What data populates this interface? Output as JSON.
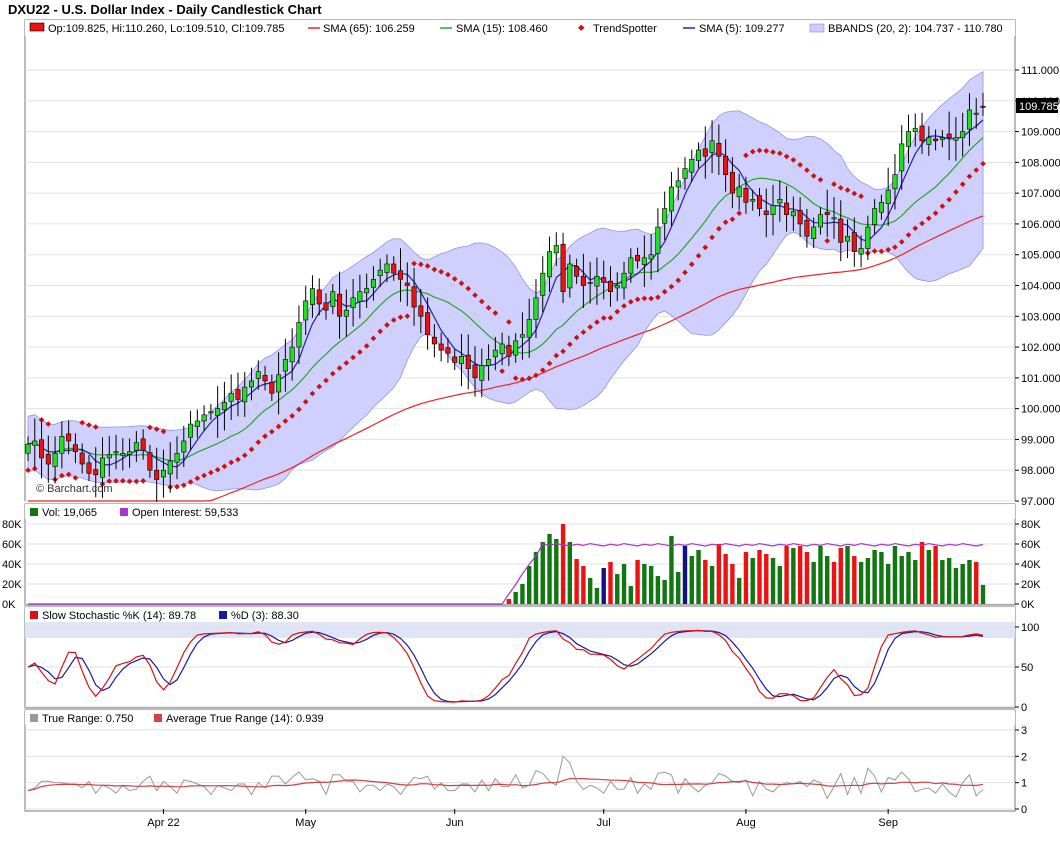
{
  "colors": {
    "up": "#22dd22",
    "down": "#ee1111",
    "sma65": "#ee2222",
    "sma15": "#22aa22",
    "sma5": "#2222aa",
    "bb_fill": "#ccccff",
    "bb_line": "#8888dd",
    "trend": "#cc1111",
    "vol_up": "#117711",
    "vol_down": "#ee1111",
    "vol_flat": "#111188",
    "oi": "#aa33cc",
    "stoch_k": "#dd1111",
    "stoch_d": "#1a1a99",
    "tr": "#999999",
    "atr": "#cc4444"
  },
  "header": {
    "title": "DXU22 - U.S. Dollar Index - Daily Candlestick Chart",
    "watermark": "© Barchart.com"
  },
  "legend_price": {
    "ohlc": "Op:109.825, Hi:110.260, Lo:109.510, Cl:109.785",
    "sma65": "SMA (65): 106.259",
    "sma15": "SMA (15): 108.460",
    "trend": "TrendSpotter",
    "sma5": "SMA (5): 109.277",
    "bbands": "BBANDS (20, 2): 104.737 - 110.780"
  },
  "legend_volume": {
    "vol": "Vol: 19,065",
    "oi": "Open Interest: 59,533"
  },
  "legend_stoch": {
    "k": "Slow Stochastic %K (14): 89.78",
    "d": "%D (3): 88.30"
  },
  "legend_tr": {
    "tr": "True Range: 0.750",
    "atr": "Average True Range (14): 0.939"
  },
  "last_price_label": "109.785",
  "x_labels": [
    "Apr 22",
    "May",
    "Jun",
    "Jul",
    "Aug",
    "Sep"
  ],
  "chart_data": [
    {
      "type": "candlestick",
      "title": "DXU22 - U.S. Dollar Index - Daily Candlestick Chart",
      "y_range": [
        97.0,
        111.0
      ],
      "y_ticks": [
        "111.000",
        "110.000",
        "109.000",
        "108.000",
        "107.000",
        "106.000",
        "105.000",
        "104.000",
        "103.000",
        "102.000",
        "101.000",
        "100.000",
        "99.000",
        "98.000",
        "97.000"
      ],
      "closes": [
        98.85,
        98.95,
        98.4,
        98.2,
        98.55,
        99.1,
        98.95,
        98.6,
        98.2,
        97.9,
        97.85,
        98.4,
        98.5,
        98.6,
        98.55,
        98.6,
        98.9,
        98.65,
        98.0,
        97.7,
        98.0,
        98.3,
        98.55,
        98.95,
        99.5,
        99.6,
        99.8,
        99.9,
        100.0,
        100.2,
        100.5,
        100.3,
        100.7,
        100.9,
        101.2,
        100.9,
        100.5,
        101.1,
        101.6,
        102.0,
        102.8,
        103.5,
        103.9,
        103.4,
        103.2,
        103.8,
        103.0,
        103.2,
        103.6,
        103.8,
        103.9,
        104.2,
        104.5,
        104.7,
        104.4,
        104.2,
        104.0,
        103.3,
        103.0,
        102.4,
        102.1,
        101.9,
        101.8,
        101.5,
        101.7,
        101.3,
        101.0,
        101.4,
        101.6,
        101.9,
        102.1,
        101.7,
        102.2,
        102.4,
        102.9,
        103.6,
        104.4,
        105.1,
        105.3,
        103.8,
        104.7,
        104.3,
        104.0,
        104.1,
        104.3,
        104.1,
        103.8,
        104.0,
        104.4,
        104.9,
        104.8,
        104.9,
        105.0,
        105.9,
        106.5,
        107.2,
        107.4,
        107.8,
        108.1,
        108.4,
        108.2,
        108.7,
        108.2,
        107.6,
        107.0,
        107.2,
        106.7,
        106.8,
        106.5,
        106.3,
        106.6,
        106.8,
        106.3,
        106.4,
        106.0,
        105.6,
        105.9,
        106.3,
        106.3,
        106.2,
        105.4,
        105.6,
        105.1,
        105.2,
        105.9,
        106.5,
        106.7,
        107.1,
        107.6,
        108.6,
        109.0,
        109.1,
        108.7,
        108.8,
        108.7,
        108.8,
        108.8,
        108.8,
        109.0,
        109.7,
        109.6,
        109.785
      ],
      "sma65_last": 106.259,
      "sma15_last": 108.46,
      "sma5_last": 109.277,
      "bbands_last": [
        104.737,
        110.78
      ],
      "ohlc_last": {
        "open": 109.825,
        "high": 110.26,
        "low": 109.51,
        "close": 109.785
      }
    },
    {
      "type": "bar",
      "title": "Volume / Open Interest",
      "y_range": [
        0,
        80000
      ],
      "y_ticks": [
        "80K",
        "60K",
        "40K",
        "20K",
        "0K"
      ],
      "vol_last": 19065,
      "oi_last": 59533,
      "volume_nonzero": [
        5000,
        12000,
        20000,
        38000,
        52000,
        62000,
        70000,
        65000,
        80000,
        62000,
        45000,
        38000,
        26000,
        16000,
        36000,
        42000,
        30000,
        40000,
        18000,
        44000,
        40000,
        38000,
        28000,
        24000,
        68000,
        32000,
        58000,
        48000,
        54000,
        44000,
        38000,
        60000,
        50000,
        40000,
        26000,
        52000,
        46000,
        54000,
        50000,
        46000,
        38000,
        58000,
        56000,
        58000,
        52000,
        42000,
        58000,
        48000,
        42000,
        56000,
        58000,
        48000,
        42000,
        46000,
        54000,
        52000,
        40000,
        58000,
        48000,
        52000,
        44000,
        62000,
        54000,
        58000,
        44000,
        46000,
        36000,
        40000,
        44000,
        42000,
        19065
      ]
    },
    {
      "type": "line",
      "title": "Slow Stochastic",
      "y_range": [
        0,
        100
      ],
      "y_ticks": [
        "100",
        "50",
        "0"
      ],
      "k_last": 89.78,
      "d_last": 88.3
    },
    {
      "type": "line",
      "title": "True Range",
      "y_range": [
        0,
        3
      ],
      "y_ticks": [
        "3",
        "2",
        "1",
        "0"
      ],
      "tr_last": 0.75,
      "atr_last": 0.939
    }
  ]
}
